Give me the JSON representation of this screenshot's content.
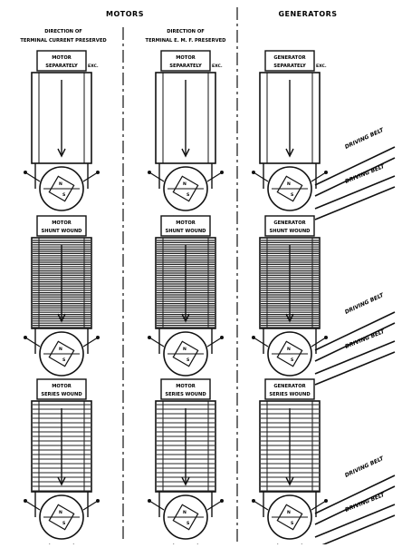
{
  "header": {
    "motors": "MOTORS",
    "generators": "GENERATORS",
    "col1_line1": "DIRECTION OF",
    "col1_line2": "TERMINAL CURRENT PRESERVED",
    "col2_line1": "DIRECTION OF",
    "col2_line2": "TERMINAL E. M. F. PRESERVED"
  },
  "belt_label": "DRIVING BELT",
  "rows": [
    {
      "cells": [
        {
          "plate1": "MOTOR",
          "plate2": "SEPARATELY",
          "ext": "EXC.",
          "wound": false,
          "kind": "motor"
        },
        {
          "plate1": "MOTOR",
          "plate2": "SEPARATELY",
          "ext": "EXC.",
          "wound": false,
          "kind": "motor"
        },
        {
          "plate1": "GENERATOR",
          "plate2": "SEPARATELY",
          "ext": "EXC.",
          "wound": false,
          "kind": "generator"
        }
      ]
    },
    {
      "cells": [
        {
          "plate1": "MOTOR",
          "plate2": "SHUNT WOUND",
          "ext": "",
          "wound": true,
          "kind": "motor"
        },
        {
          "plate1": "MOTOR",
          "plate2": "SHUNT WOUND",
          "ext": "",
          "wound": true,
          "kind": "motor"
        },
        {
          "plate1": "GENERATOR",
          "plate2": "SHUNT WOUND",
          "ext": "",
          "wound": true,
          "kind": "generator"
        }
      ]
    },
    {
      "cells": [
        {
          "plate1": "MOTOR",
          "plate2": "SERIES WOUND",
          "ext": "",
          "wound": "series",
          "kind": "motor"
        },
        {
          "plate1": "MOTOR",
          "plate2": "SERIES WOUND",
          "ext": "",
          "wound": "series",
          "kind": "motor"
        },
        {
          "plate1": "GENERATOR",
          "plate2": "SERIES WOUND",
          "ext": "",
          "wound": "series",
          "kind": "generator"
        }
      ]
    }
  ],
  "armature_letters": {
    "n": "N",
    "s": "S"
  }
}
